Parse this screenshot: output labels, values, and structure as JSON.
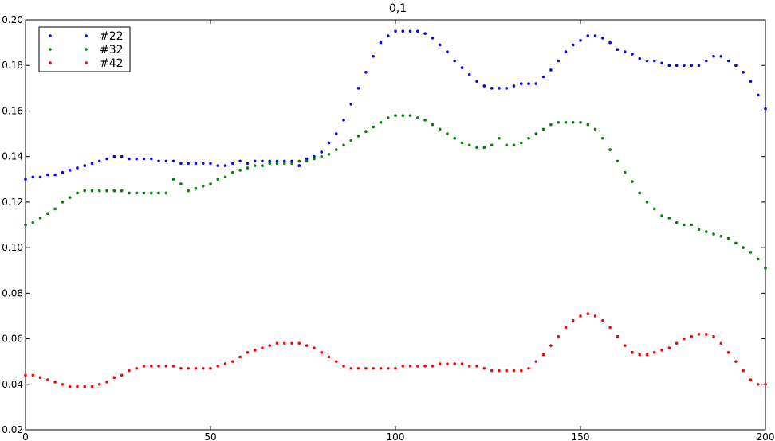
{
  "chart_data": {
    "type": "scatter",
    "title": "0,1",
    "xlabel": "",
    "ylabel": "",
    "xlim": [
      0,
      200
    ],
    "ylim": [
      0.02,
      0.2
    ],
    "xticks": [
      "0",
      "50",
      "100",
      "150",
      "200"
    ],
    "yticks": [
      "0.02",
      "0.04",
      "0.06",
      "0.08",
      "0.10",
      "0.12",
      "0.14",
      "0.16",
      "0.18",
      "0.20"
    ],
    "grid": false,
    "legend_position": "top-left",
    "series": [
      {
        "name": "#22",
        "color": "#0000ff",
        "x": [
          0,
          2,
          4,
          6,
          8,
          10,
          12,
          14,
          16,
          18,
          20,
          22,
          24,
          26,
          28,
          30,
          32,
          34,
          36,
          38,
          40,
          42,
          44,
          46,
          48,
          50,
          52,
          54,
          56,
          58,
          60,
          62,
          64,
          66,
          68,
          70,
          72,
          74,
          76,
          78,
          80,
          82,
          84,
          86,
          88,
          90,
          92,
          94,
          96,
          98,
          100,
          102,
          104,
          106,
          108,
          110,
          112,
          114,
          116,
          118,
          120,
          122,
          124,
          126,
          128,
          130,
          132,
          134,
          136,
          138,
          140,
          142,
          144,
          146,
          148,
          150,
          152,
          154,
          156,
          158,
          160,
          162,
          164,
          166,
          168,
          170,
          172,
          174,
          176,
          178,
          180,
          182,
          184,
          186,
          188,
          190,
          192,
          194,
          196,
          198,
          200
        ],
        "y": [
          0.13,
          0.131,
          0.131,
          0.132,
          0.132,
          0.133,
          0.134,
          0.135,
          0.136,
          0.137,
          0.138,
          0.139,
          0.14,
          0.14,
          0.139,
          0.139,
          0.139,
          0.139,
          0.138,
          0.138,
          0.138,
          0.137,
          0.137,
          0.137,
          0.137,
          0.137,
          0.136,
          0.136,
          0.137,
          0.138,
          0.137,
          0.138,
          0.138,
          0.138,
          0.138,
          0.138,
          0.138,
          0.136,
          0.139,
          0.14,
          0.142,
          0.146,
          0.15,
          0.156,
          0.163,
          0.17,
          0.177,
          0.184,
          0.19,
          0.193,
          0.195,
          0.195,
          0.195,
          0.195,
          0.194,
          0.192,
          0.189,
          0.186,
          0.182,
          0.179,
          0.176,
          0.173,
          0.171,
          0.17,
          0.17,
          0.17,
          0.171,
          0.172,
          0.172,
          0.172,
          0.175,
          0.178,
          0.182,
          0.186,
          0.189,
          0.191,
          0.193,
          0.193,
          0.192,
          0.19,
          0.187,
          0.186,
          0.185,
          0.183,
          0.182,
          0.182,
          0.181,
          0.18,
          0.18,
          0.18,
          0.18,
          0.18,
          0.182,
          0.184,
          0.184,
          0.182,
          0.18,
          0.177,
          0.173,
          0.167,
          0.161
        ]
      },
      {
        "name": "#32",
        "color": "#008000",
        "x": [
          0,
          2,
          4,
          6,
          8,
          10,
          12,
          14,
          16,
          18,
          20,
          22,
          24,
          26,
          28,
          30,
          32,
          34,
          36,
          38,
          40,
          42,
          44,
          46,
          48,
          50,
          52,
          54,
          56,
          58,
          60,
          62,
          64,
          66,
          68,
          70,
          72,
          74,
          76,
          78,
          80,
          82,
          84,
          86,
          88,
          90,
          92,
          94,
          96,
          98,
          100,
          102,
          104,
          106,
          108,
          110,
          112,
          114,
          116,
          118,
          120,
          122,
          124,
          126,
          128,
          130,
          132,
          134,
          136,
          138,
          140,
          142,
          144,
          146,
          148,
          150,
          152,
          154,
          156,
          158,
          160,
          162,
          164,
          166,
          168,
          170,
          172,
          174,
          176,
          178,
          180,
          182,
          184,
          186,
          188,
          190,
          192,
          194,
          196,
          198,
          200
        ],
        "y": [
          0.11,
          0.111,
          0.113,
          0.115,
          0.117,
          0.12,
          0.122,
          0.124,
          0.125,
          0.125,
          0.125,
          0.125,
          0.125,
          0.125,
          0.124,
          0.124,
          0.124,
          0.124,
          0.124,
          0.124,
          0.13,
          0.128,
          0.125,
          0.126,
          0.127,
          0.128,
          0.13,
          0.131,
          0.133,
          0.134,
          0.135,
          0.136,
          0.136,
          0.137,
          0.137,
          0.137,
          0.137,
          0.138,
          0.138,
          0.139,
          0.14,
          0.141,
          0.143,
          0.145,
          0.147,
          0.149,
          0.151,
          0.153,
          0.155,
          0.157,
          0.158,
          0.158,
          0.158,
          0.157,
          0.156,
          0.154,
          0.152,
          0.15,
          0.148,
          0.146,
          0.145,
          0.144,
          0.144,
          0.145,
          0.148,
          0.145,
          0.145,
          0.146,
          0.148,
          0.15,
          0.152,
          0.154,
          0.155,
          0.155,
          0.155,
          0.155,
          0.154,
          0.152,
          0.148,
          0.143,
          0.138,
          0.133,
          0.129,
          0.124,
          0.12,
          0.117,
          0.114,
          0.113,
          0.111,
          0.11,
          0.11,
          0.108,
          0.107,
          0.106,
          0.105,
          0.104,
          0.102,
          0.1,
          0.098,
          0.095,
          0.091
        ]
      },
      {
        "name": "#42",
        "color": "#ff0000",
        "x": [
          0,
          2,
          4,
          6,
          8,
          10,
          12,
          14,
          16,
          18,
          20,
          22,
          24,
          26,
          28,
          30,
          32,
          34,
          36,
          38,
          40,
          42,
          44,
          46,
          48,
          50,
          52,
          54,
          56,
          58,
          60,
          62,
          64,
          66,
          68,
          70,
          72,
          74,
          76,
          78,
          80,
          82,
          84,
          86,
          88,
          90,
          92,
          94,
          96,
          98,
          100,
          102,
          104,
          106,
          108,
          110,
          112,
          114,
          116,
          118,
          120,
          122,
          124,
          126,
          128,
          130,
          132,
          134,
          136,
          138,
          140,
          142,
          144,
          146,
          148,
          150,
          152,
          154,
          156,
          158,
          160,
          162,
          164,
          166,
          168,
          170,
          172,
          174,
          176,
          178,
          180,
          182,
          184,
          186,
          188,
          190,
          192,
          194,
          196,
          198,
          200
        ],
        "y": [
          0.044,
          0.044,
          0.043,
          0.042,
          0.041,
          0.04,
          0.039,
          0.039,
          0.039,
          0.039,
          0.04,
          0.041,
          0.043,
          0.044,
          0.046,
          0.047,
          0.048,
          0.048,
          0.048,
          0.048,
          0.048,
          0.047,
          0.047,
          0.047,
          0.047,
          0.047,
          0.048,
          0.049,
          0.05,
          0.052,
          0.054,
          0.055,
          0.056,
          0.057,
          0.058,
          0.058,
          0.058,
          0.058,
          0.057,
          0.056,
          0.054,
          0.052,
          0.05,
          0.048,
          0.047,
          0.047,
          0.047,
          0.047,
          0.047,
          0.047,
          0.047,
          0.048,
          0.048,
          0.048,
          0.048,
          0.048,
          0.049,
          0.049,
          0.049,
          0.049,
          0.048,
          0.048,
          0.047,
          0.046,
          0.046,
          0.046,
          0.046,
          0.046,
          0.047,
          0.05,
          0.053,
          0.057,
          0.061,
          0.065,
          0.068,
          0.07,
          0.071,
          0.07,
          0.068,
          0.065,
          0.061,
          0.057,
          0.054,
          0.053,
          0.053,
          0.054,
          0.055,
          0.056,
          0.058,
          0.06,
          0.061,
          0.062,
          0.062,
          0.061,
          0.058,
          0.054,
          0.05,
          0.046,
          0.042,
          0.04,
          0.04
        ]
      }
    ]
  }
}
